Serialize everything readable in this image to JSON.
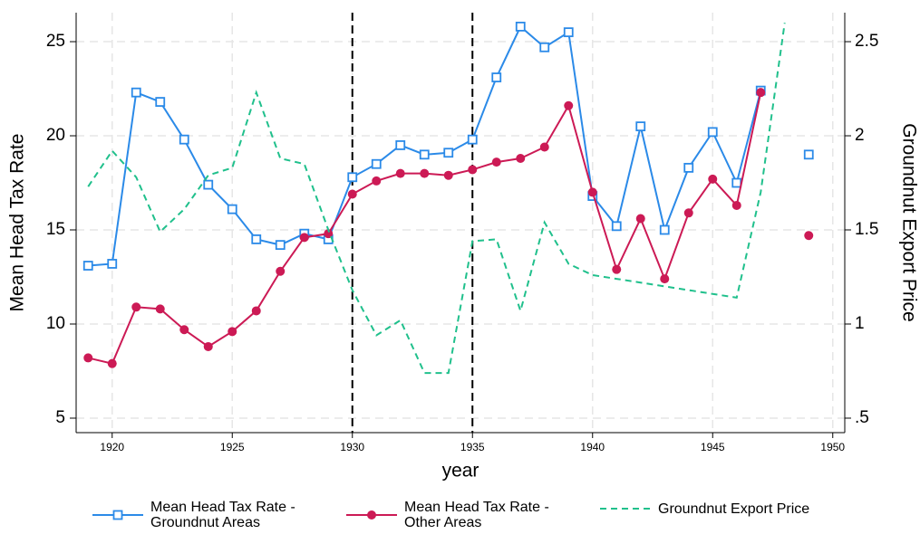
{
  "chart_data": {
    "type": "line",
    "x_label": "year",
    "y_label": "Mean Head Tax Rate",
    "y2_label": "Groundnut Export Price",
    "x": [
      1919,
      1920,
      1921,
      1922,
      1923,
      1924,
      1925,
      1926,
      1927,
      1928,
      1929,
      1930,
      1931,
      1932,
      1933,
      1934,
      1935,
      1936,
      1937,
      1938,
      1939,
      1940,
      1941,
      1942,
      1943,
      1944,
      1945,
      1946,
      1947,
      1948,
      1949
    ],
    "series": [
      {
        "name": "Mean Head Tax Rate - Groundnut Areas",
        "color": "#2b8ae8",
        "marker": "square",
        "dashed": false,
        "values": [
          13.1,
          13.2,
          22.3,
          21.8,
          19.8,
          17.4,
          16.1,
          14.5,
          14.2,
          14.8,
          14.5,
          17.8,
          18.5,
          19.5,
          19.0,
          19.1,
          19.8,
          23.1,
          25.8,
          24.7,
          25.5,
          16.8,
          15.2,
          20.5,
          15.0,
          18.3,
          20.2,
          17.5,
          22.4,
          null,
          19.0
        ]
      },
      {
        "name": "Mean Head Tax Rate - Other Areas",
        "color": "#cc1a55",
        "marker": "circle",
        "dashed": false,
        "values": [
          8.2,
          7.9,
          10.9,
          10.8,
          9.7,
          8.8,
          9.6,
          10.7,
          12.8,
          14.6,
          14.8,
          16.9,
          17.6,
          18.0,
          18.0,
          17.9,
          18.2,
          18.6,
          18.8,
          19.4,
          21.6,
          17.0,
          12.9,
          15.6,
          12.4,
          15.9,
          17.7,
          16.3,
          22.3,
          null,
          14.7
        ]
      },
      {
        "name": "Groundnut Export Price",
        "color": "#20c08c",
        "marker": null,
        "dashed": true,
        "axis": "y2",
        "values": [
          1.73,
          1.92,
          1.78,
          1.49,
          1.61,
          1.79,
          1.83,
          2.23,
          1.88,
          1.85,
          1.5,
          1.18,
          0.94,
          1.02,
          0.74,
          0.74,
          1.44,
          1.45,
          1.07,
          1.54,
          1.32,
          1.26,
          1.24,
          1.22,
          1.2,
          1.18,
          1.16,
          1.14,
          1.7,
          2.6,
          null
        ]
      }
    ],
    "xlim": [
      1918.5,
      1950.5
    ],
    "xticks": [
      1920,
      1925,
      1930,
      1935,
      1940,
      1945,
      1950
    ],
    "ylim": [
      4.23,
      26.54
    ],
    "yticks": [
      5,
      10,
      15,
      20,
      25
    ],
    "y2lim": [
      0.423,
      2.654
    ],
    "y2ticks": [
      {
        "value": 0.5,
        "label": ".5"
      },
      1,
      1.5,
      2,
      2.5
    ],
    "vlines": [
      1930,
      1935
    ],
    "grid": true,
    "legend": "bottom"
  }
}
